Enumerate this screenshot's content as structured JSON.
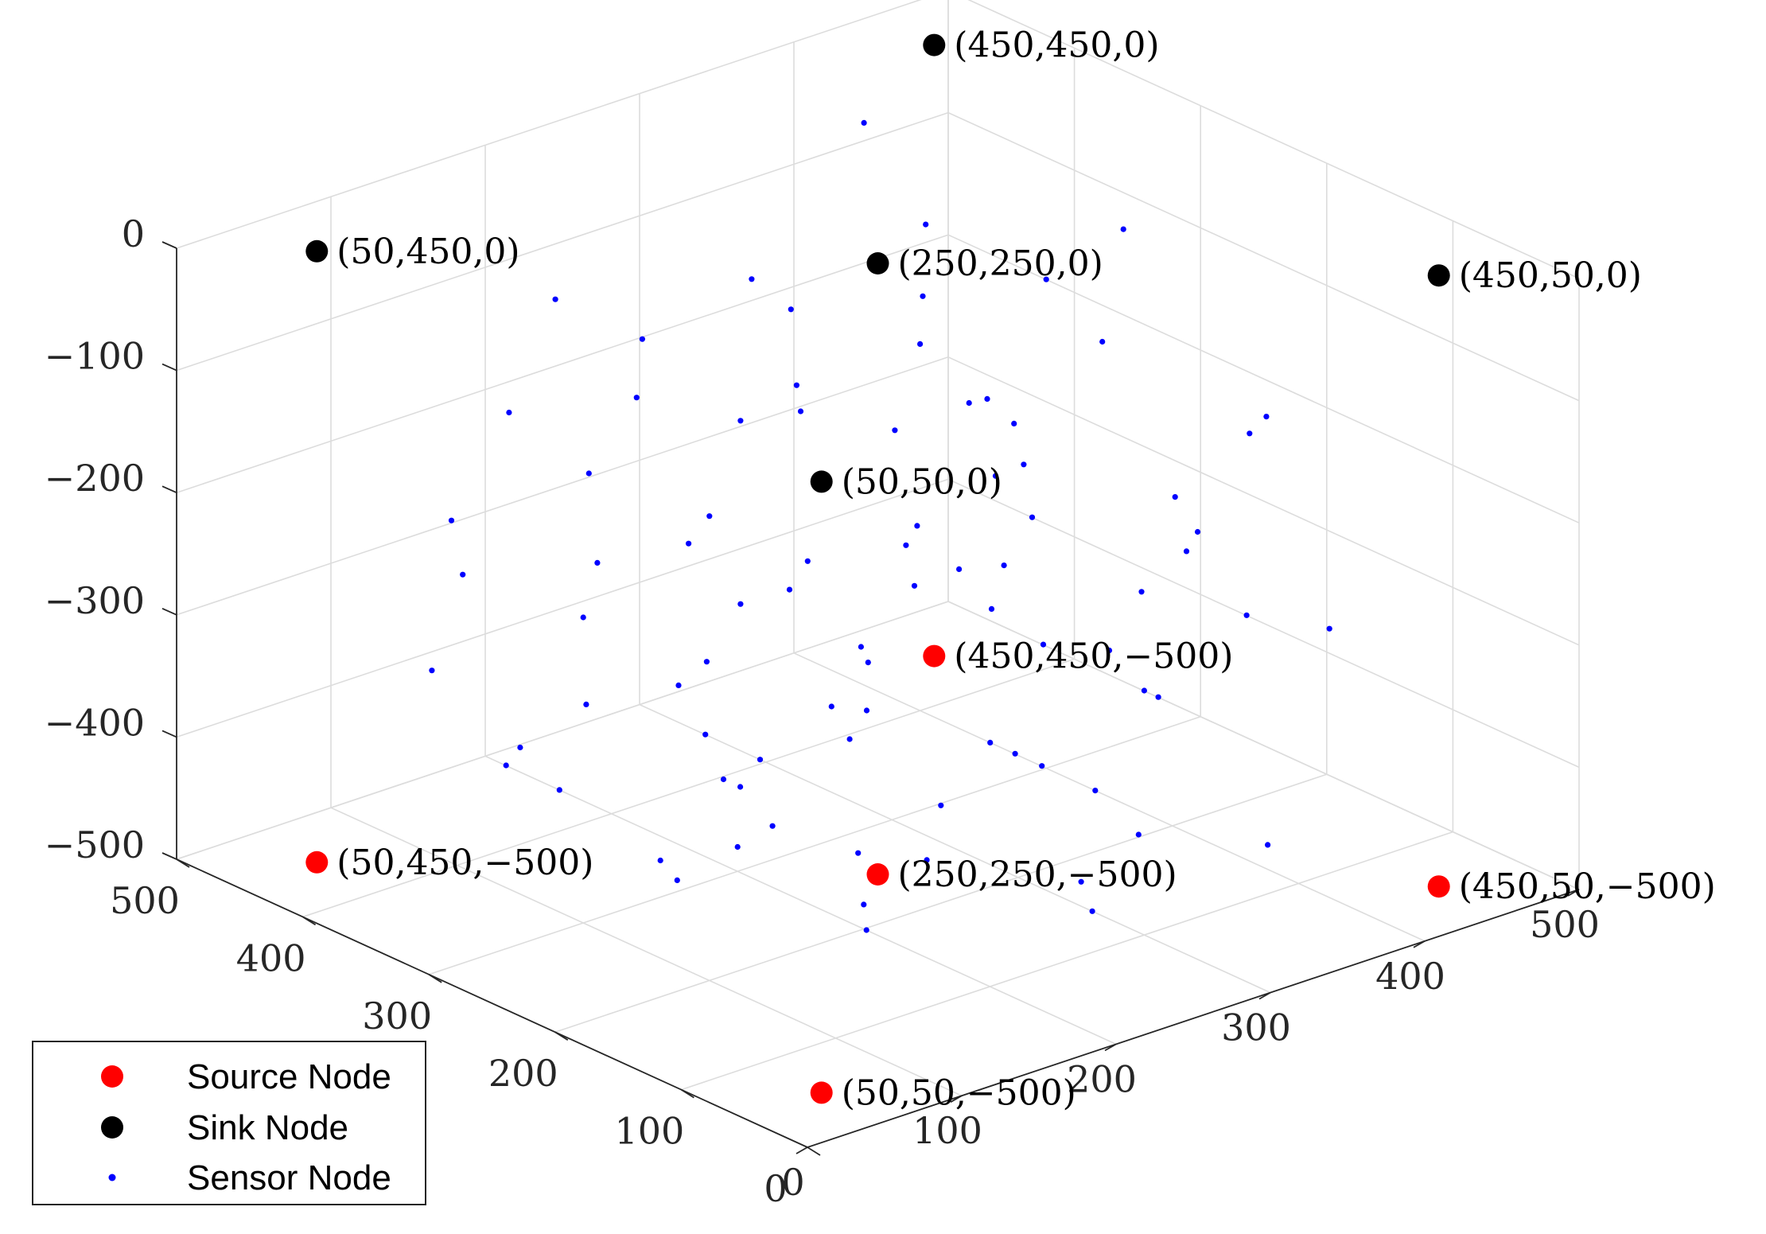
{
  "chart_data": {
    "type": "scatter3d",
    "xlim": [
      0,
      500
    ],
    "ylim": [
      0,
      500
    ],
    "zlim": [
      -500,
      0
    ],
    "x_ticks": [
      0,
      100,
      200,
      300,
      400,
      500
    ],
    "y_ticks": [
      0,
      100,
      200,
      300,
      400,
      500
    ],
    "z_ticks": [
      -500,
      -400,
      -300,
      -200,
      -100,
      0
    ],
    "x_tick_labels": [
      "0",
      "100",
      "200",
      "300",
      "400",
      "500"
    ],
    "y_tick_labels": [
      "0",
      "100",
      "200",
      "300",
      "400",
      "500"
    ],
    "z_tick_labels": [
      "−500",
      "−400",
      "−300",
      "−200",
      "−100",
      "0"
    ],
    "grid": true,
    "legend_position": "bottom-left",
    "series": [
      {
        "name": "Source Node",
        "color": "#ff0000",
        "marker": "large-dot",
        "points": [
          [
            50,
            50,
            -500
          ],
          [
            450,
            50,
            -500
          ],
          [
            250,
            250,
            -500
          ],
          [
            50,
            450,
            -500
          ],
          [
            450,
            450,
            -500
          ]
        ],
        "labels": [
          "(50,50,−500)",
          "(450,50,−500)",
          "(250,250,−500)",
          "(50,450,−500)",
          "(450,450,−500)"
        ]
      },
      {
        "name": "Sink Node",
        "color": "#000000",
        "marker": "large-dot",
        "points": [
          [
            50,
            50,
            0
          ],
          [
            450,
            50,
            0
          ],
          [
            250,
            250,
            0
          ],
          [
            50,
            450,
            0
          ],
          [
            450,
            450,
            0
          ]
        ],
        "labels": [
          "(50,50,0)",
          "(450,50,0)",
          "(250,250,0)",
          "(50,450,0)",
          "(450,450,0)"
        ]
      },
      {
        "name": "Sensor Node",
        "color": "#0000ff",
        "marker": "small-dot",
        "points": [
          [
            380,
            420,
            -20
          ],
          [
            300,
            380,
            -120
          ],
          [
            150,
            420,
            -160
          ],
          [
            250,
            300,
            -200
          ],
          [
            400,
            300,
            -100
          ],
          [
            420,
            150,
            -150
          ],
          [
            350,
            250,
            -250
          ],
          [
            180,
            300,
            -320
          ],
          [
            100,
            350,
            -380
          ],
          [
            200,
            150,
            -420
          ],
          [
            300,
            100,
            -300
          ],
          [
            120,
            200,
            -350
          ],
          [
            350,
            420,
            -300
          ],
          [
            450,
            200,
            -200
          ],
          [
            400,
            400,
            -200
          ],
          [
            250,
            350,
            -60
          ],
          [
            320,
            300,
            -80
          ],
          [
            300,
            420,
            -380
          ],
          [
            220,
            120,
            -100
          ],
          [
            150,
            350,
            -250
          ],
          [
            380,
            200,
            -300
          ],
          [
            200,
            380,
            -150
          ],
          [
            450,
            300,
            -80
          ],
          [
            100,
            300,
            -250
          ],
          [
            250,
            150,
            -200
          ],
          [
            350,
            350,
            -320
          ],
          [
            150,
            250,
            -380
          ],
          [
            280,
            80,
            -400
          ],
          [
            420,
            420,
            -120
          ],
          [
            120,
            100,
            -420
          ],
          [
            300,
            320,
            -420
          ],
          [
            200,
            200,
            -480
          ],
          [
            250,
            400,
            -300
          ],
          [
            380,
            100,
            -460
          ],
          [
            150,
            150,
            -300
          ],
          [
            320,
            220,
            -180
          ],
          [
            80,
            380,
            -200
          ],
          [
            400,
            250,
            -380
          ],
          [
            350,
            150,
            -350
          ],
          [
            120,
            420,
            -280
          ],
          [
            220,
            250,
            -350
          ],
          [
            280,
            380,
            -480
          ],
          [
            180,
            100,
            -150
          ],
          [
            430,
            380,
            -420
          ],
          [
            300,
            180,
            -300
          ],
          [
            100,
            200,
            -120
          ],
          [
            200,
            420,
            -420
          ],
          [
            350,
            300,
            -180
          ],
          [
            180,
            220,
            -200
          ],
          [
            300,
            280,
            -250
          ],
          [
            420,
            100,
            -300
          ],
          [
            50,
            300,
            -350
          ],
          [
            250,
            80,
            -450
          ],
          [
            150,
            380,
            -450
          ],
          [
            320,
            400,
            -200
          ],
          [
            220,
            350,
            -420
          ],
          [
            380,
            320,
            -480
          ],
          [
            100,
            420,
            -350
          ],
          [
            280,
            200,
            -100
          ],
          [
            450,
            250,
            -320
          ],
          [
            200,
            300,
            -480
          ],
          [
            350,
            80,
            -250
          ],
          [
            150,
            300,
            -470
          ],
          [
            420,
            350,
            -250
          ],
          [
            250,
            200,
            -420
          ],
          [
            300,
            150,
            -480
          ],
          [
            120,
            250,
            -450
          ],
          [
            380,
            380,
            -380
          ],
          [
            200,
            80,
            -300
          ],
          [
            80,
            200,
            -250
          ],
          [
            320,
            100,
            -150
          ],
          [
            180,
            420,
            -80
          ],
          [
            400,
            180,
            -250
          ],
          [
            250,
            320,
            -300
          ],
          [
            150,
            80,
            -200
          ],
          [
            350,
            380,
            -430
          ],
          [
            220,
            400,
            -120
          ],
          [
            100,
            150,
            -350
          ],
          [
            300,
            420,
            -230
          ],
          [
            420,
            280,
            -150
          ],
          [
            180,
            180,
            -420
          ],
          [
            280,
            300,
            -350
          ],
          [
            400,
            420,
            -280
          ],
          [
            120,
            320,
            -150
          ],
          [
            250,
            120,
            -350
          ],
          [
            350,
            200,
            -450
          ],
          [
            200,
            250,
            -100
          ]
        ]
      }
    ]
  }
}
